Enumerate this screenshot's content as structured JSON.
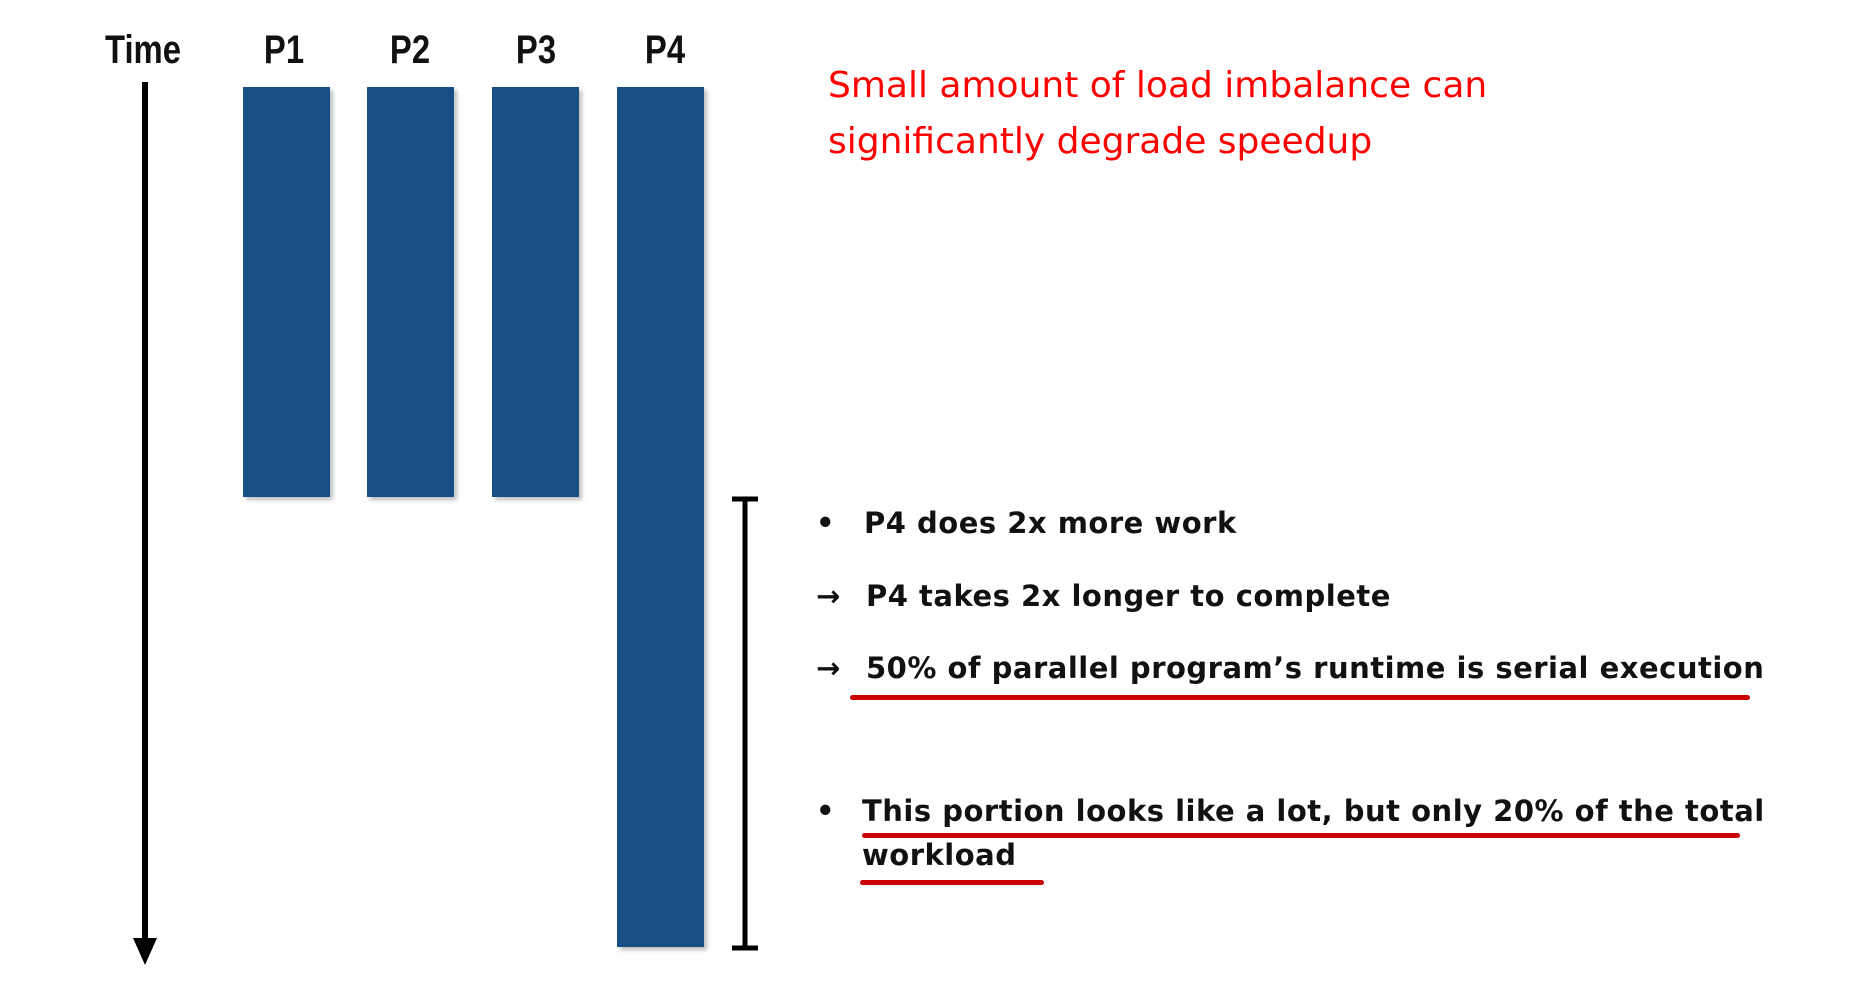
{
  "axis": {
    "time_label": "Time"
  },
  "processors": [
    {
      "label": "P1"
    },
    {
      "label": "P2"
    },
    {
      "label": "P3"
    },
    {
      "label": "P4"
    }
  ],
  "headline": {
    "line1": "Small amount of load imbalance can",
    "line2": "significantly degrade speedup"
  },
  "notes": {
    "bullet1_marker": "•",
    "bullet1": "P4 does 2x more work",
    "arrow_marker": "→",
    "step1": "P4 takes 2x longer to complete",
    "step2": "50% of parallel program’s runtime is serial execution",
    "bullet2_marker": "•",
    "bullet2_line1": "This portion looks like a lot, but only 20% of the total",
    "bullet2_line2": "workload"
  },
  "colors": {
    "bar": "#174e84",
    "headline": "#ff0000",
    "underline": "#cc0000"
  }
}
